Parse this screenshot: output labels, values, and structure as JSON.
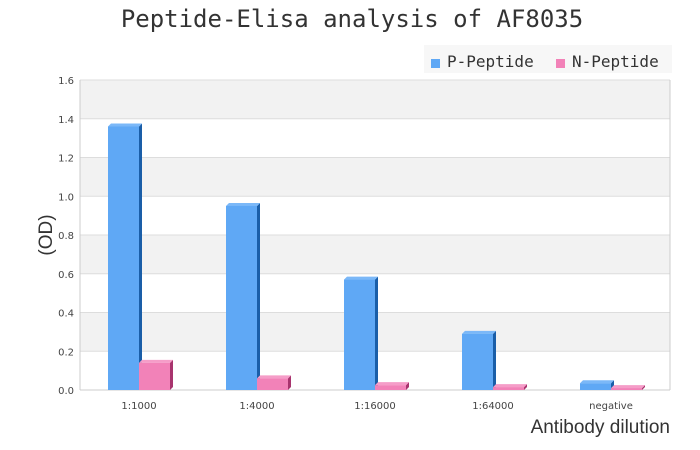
{
  "chart_data": {
    "type": "bar",
    "title": "Peptide-Elisa analysis of AF8035",
    "xlabel": "Antibody dilution",
    "ylabel": "(OD)",
    "categories": [
      "1:1000",
      "1:4000",
      "1:16000",
      "1:64000",
      "negative"
    ],
    "series": [
      {
        "name": "P-Peptide",
        "color": "#5fa8f5",
        "values": [
          1.36,
          0.95,
          0.57,
          0.29,
          0.035
        ]
      },
      {
        "name": "N-Peptide",
        "color": "#f282b8",
        "values": [
          0.14,
          0.06,
          0.025,
          0.015,
          0.01
        ]
      }
    ],
    "ylim": [
      0,
      1.6
    ],
    "yticks": [
      "0.0",
      "0.2",
      "0.4",
      "0.6",
      "0.8",
      "1.0",
      "1.2",
      "1.4",
      "1.6"
    ],
    "grid": true,
    "legend": "top-right"
  }
}
